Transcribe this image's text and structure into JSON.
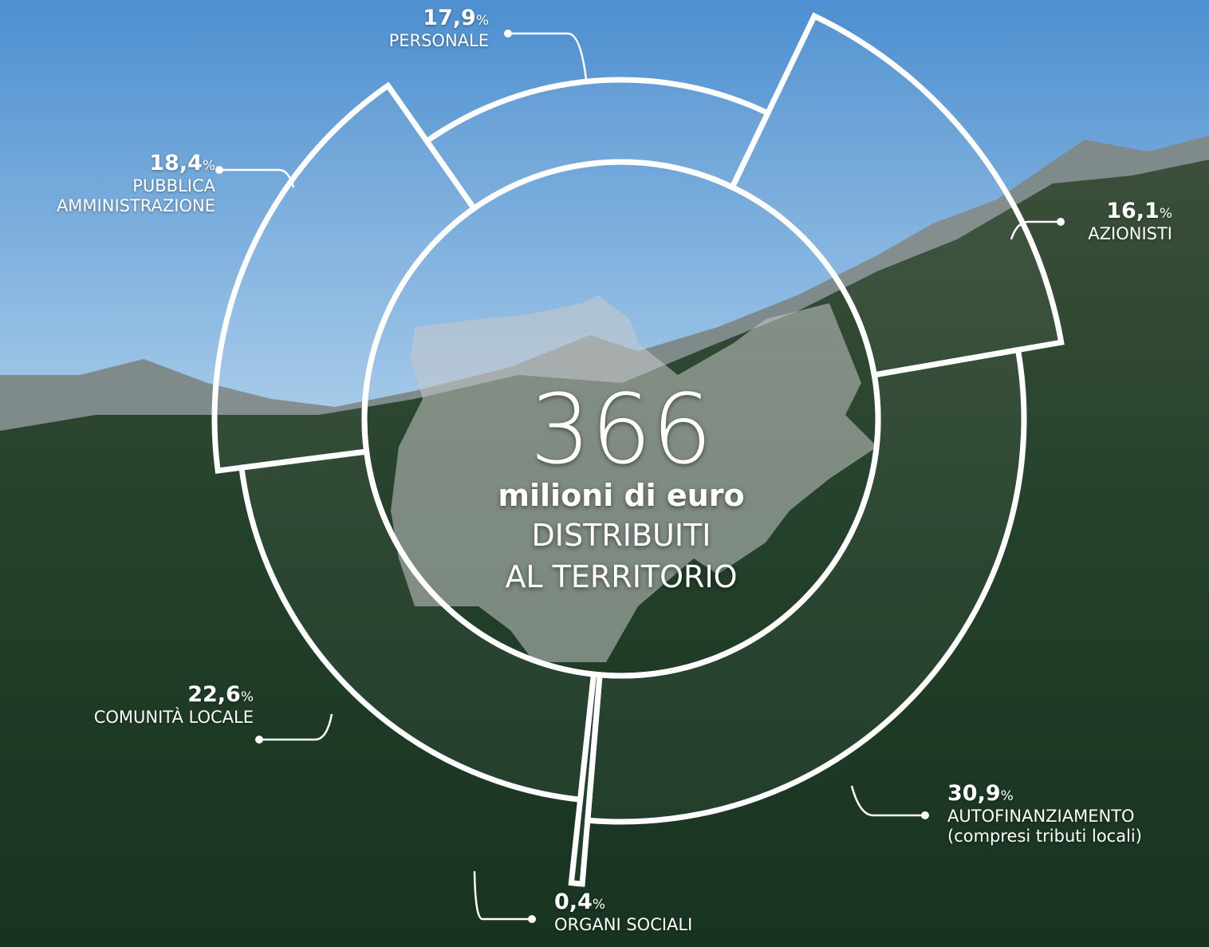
{
  "chart_data": {
    "type": "pie",
    "categories": [
      "PERSONALE",
      "AZIONISTI",
      "AUTOFINANZIAMENTO",
      "ORGANI SOCIALI",
      "COMUNITÀ LOCALE",
      "PUBBLICA AMMINISTRAZIONE"
    ],
    "values": [
      17.9,
      16.1,
      30.9,
      0.4,
      22.6,
      18.4
    ],
    "value_labels": [
      "17,9",
      "16,1",
      "30,9",
      "0,4",
      "22,6",
      "18,4"
    ],
    "unit": "%",
    "annotation": "(compresi tributi locali)",
    "total": 366,
    "center_lines": [
      "milioni di euro",
      "DISTRIBUITI",
      "AL TERRITORIO"
    ],
    "color": "#ffffff"
  }
}
